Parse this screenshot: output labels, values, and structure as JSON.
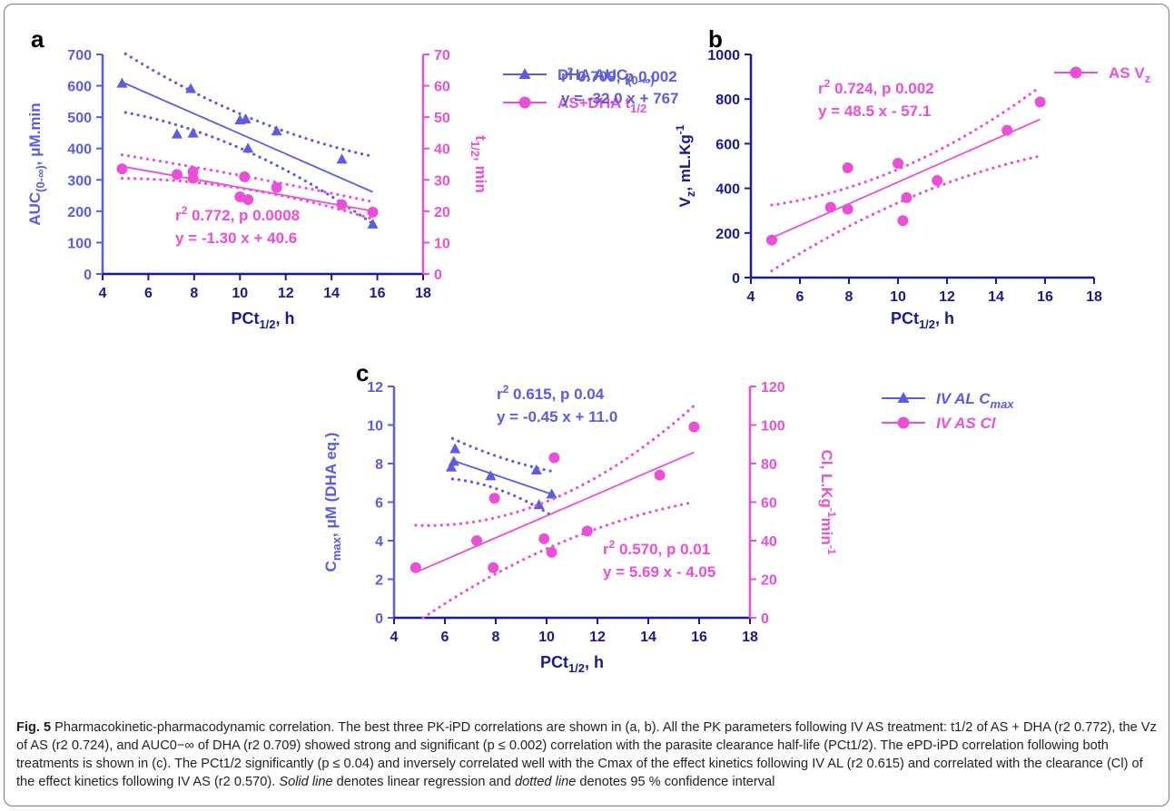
{
  "colors": {
    "blue": "#5b5be6",
    "pink": "#ea4fd6",
    "navy": "#1a1a96",
    "black": "#000000"
  },
  "panels": {
    "a": {
      "label": "a",
      "xlabel_main": "PCt",
      "xlabel_sub": "1/2",
      "xlabel_end": ", h",
      "ylabel_left": "AUC",
      "ylabel_left_sub": "(0-∞)",
      "ylabel_left_end": ", μM.min",
      "ylabel_right": "t",
      "ylabel_right_sub": "1/2",
      "ylabel_right_end": ", min",
      "legend": [
        {
          "text": "DHA AUC",
          "sub": "(0-∞)",
          "marker": "triangle",
          "color": "blue"
        },
        {
          "text": "AS+DHA t",
          "sub": "1/2",
          "marker": "circle",
          "color": "pink"
        }
      ],
      "annotations": [
        {
          "pre": "r",
          "sup": "2",
          "text": " 0.709, p 0.002",
          "color": "blue"
        },
        {
          "pre": "",
          "sup": "",
          "text": "y = -32.0 x + 767",
          "color": "blue"
        },
        {
          "pre": "r",
          "sup": "2",
          "text": " 0.772, p 0.0008",
          "color": "pink"
        },
        {
          "pre": "",
          "sup": "",
          "text": "y = -1.30 x + 40.6",
          "color": "pink"
        }
      ]
    },
    "b": {
      "label": "b",
      "xlabel_main": "PCt",
      "xlabel_sub": "1/2",
      "xlabel_end": ", h",
      "ylabel_left": "V",
      "ylabel_left_sub": "z",
      "ylabel_left_end": ", mL.Kg",
      "ylabel_left_sup": "-1",
      "legend": [
        {
          "text": "AS V",
          "sub": "z",
          "marker": "circle",
          "color": "pink"
        }
      ],
      "annotations": [
        {
          "pre": "r",
          "sup": "2",
          "text": " 0.724, p 0.002",
          "color": "pink"
        },
        {
          "pre": "",
          "sup": "",
          "text": "y = 48.5 x - 57.1",
          "color": "pink"
        }
      ]
    },
    "c": {
      "label": "c",
      "xlabel_main": "PCt",
      "xlabel_sub": "1/2",
      "xlabel_end": ", h",
      "ylabel_left": "C",
      "ylabel_left_sub": "max",
      "ylabel_left_end": ", μM (DHA eq.)",
      "ylabel_right": "Cl, L.Kg",
      "ylabel_right_sup": "-1",
      "ylabel_right_end": "min",
      "ylabel_right_sup2": "-1",
      "legend": [
        {
          "text": "IV AL C",
          "sub": "max",
          "marker": "triangle",
          "color": "blue"
        },
        {
          "text": "IV AS Cl",
          "sub": "",
          "marker": "circle",
          "color": "pink"
        }
      ],
      "annotations": [
        {
          "pre": "r",
          "sup": "2",
          "text": " 0.615, p 0.04",
          "color": "blue"
        },
        {
          "pre": "",
          "sup": "",
          "text": "y = -0.45 x + 11.0",
          "color": "blue"
        },
        {
          "pre": "r",
          "sup": "2",
          "text": " 0.570, p 0.01",
          "color": "pink"
        },
        {
          "pre": "",
          "sup": "",
          "text": "y = 5.69 x - 4.05",
          "color": "pink"
        }
      ]
    }
  },
  "chart_data": [
    {
      "panel": "a",
      "type": "scatter",
      "xlim": [
        4,
        18
      ],
      "xticks": [
        4,
        6,
        8,
        10,
        12,
        14,
        16,
        18
      ],
      "ylim_left": [
        0,
        700
      ],
      "yticks_left": [
        0,
        100,
        200,
        300,
        400,
        500,
        600,
        700
      ],
      "ylim_right": [
        0,
        70
      ],
      "yticks_right": [
        0,
        10,
        20,
        30,
        40,
        50,
        60,
        70
      ],
      "series": [
        {
          "name": "DHA AUC(0-∞)",
          "axis": "left",
          "marker": "triangle",
          "color": "blue",
          "x": [
            4.85,
            7.25,
            7.85,
            7.95,
            10.0,
            10.25,
            10.35,
            11.6,
            14.45,
            15.8
          ],
          "y": [
            607,
            445,
            590,
            448,
            490,
            493,
            400,
            455,
            365,
            158
          ],
          "fit": {
            "slope": -32.0,
            "intercept": 767,
            "x_range": [
              4.85,
              15.8
            ]
          },
          "ci_upper": [
            [
              5.0,
              702
            ],
            [
              10.3,
              500
            ],
            [
              15.8,
              375
            ]
          ],
          "ci_lower": [
            [
              5.0,
              515
            ],
            [
              10.3,
              390
            ],
            [
              15.8,
              160
            ]
          ]
        },
        {
          "name": "AS+DHA t1/2",
          "axis": "right",
          "marker": "circle",
          "color": "pink",
          "x": [
            4.85,
            7.25,
            7.95,
            7.95,
            10.0,
            10.2,
            10.35,
            11.6,
            14.45,
            15.8
          ],
          "y": [
            33.5,
            31.7,
            30.5,
            32.6,
            24.6,
            31.0,
            23.7,
            27.6,
            22.1,
            19.7
          ],
          "fit": {
            "slope": -1.3,
            "intercept": 40.6,
            "x_range": [
              4.85,
              15.8
            ]
          },
          "ci_upper": [
            [
              4.85,
              38.0
            ],
            [
              10.3,
              31.0
            ],
            [
              15.8,
              23.0
            ]
          ],
          "ci_lower": [
            [
              4.85,
              30.5
            ],
            [
              10.3,
              27.0
            ],
            [
              15.8,
              17.5
            ]
          ]
        }
      ]
    },
    {
      "panel": "b",
      "type": "scatter",
      "xlim": [
        4,
        18
      ],
      "xticks": [
        4,
        6,
        8,
        10,
        12,
        14,
        16,
        18
      ],
      "ylim_left": [
        0,
        1000
      ],
      "yticks_left": [
        0,
        200,
        400,
        600,
        800,
        1000
      ],
      "series": [
        {
          "name": "AS Vz",
          "axis": "left",
          "marker": "circle",
          "color": "pink",
          "x": [
            4.85,
            7.25,
            7.95,
            7.95,
            10.0,
            10.2,
            10.35,
            11.6,
            14.45,
            15.8
          ],
          "y": [
            168,
            315,
            492,
            307,
            512,
            255,
            358,
            435,
            660,
            787
          ],
          "fit": {
            "slope": 48.5,
            "intercept": -57.1,
            "x_range": [
              4.85,
              15.8
            ]
          },
          "ci_upper": [
            [
              4.85,
              325
            ],
            [
              10.3,
              500
            ],
            [
              15.8,
              855
            ]
          ],
          "ci_lower": [
            [
              4.85,
              30
            ],
            [
              10.3,
              350
            ],
            [
              15.8,
              545
            ]
          ]
        }
      ]
    },
    {
      "panel": "c",
      "type": "scatter",
      "xlim": [
        4,
        18
      ],
      "xticks": [
        4,
        6,
        8,
        10,
        12,
        14,
        16,
        18
      ],
      "ylim_left": [
        0,
        12
      ],
      "yticks_left": [
        0,
        2,
        4,
        6,
        8,
        10,
        12
      ],
      "ylim_right": [
        0,
        120
      ],
      "yticks_right": [
        0,
        20,
        40,
        60,
        80,
        100,
        120
      ],
      "series": [
        {
          "name": "IV AL Cmax",
          "axis": "left",
          "marker": "triangle",
          "color": "blue",
          "x": [
            6.25,
            6.35,
            6.4,
            7.8,
            9.6,
            9.7,
            10.2
          ],
          "y": [
            7.8,
            8.1,
            8.75,
            7.35,
            7.65,
            5.85,
            6.4
          ],
          "fit": {
            "slope": -0.45,
            "intercept": 11.0,
            "x_range": [
              6.3,
              10.2
            ]
          },
          "ci_upper": [
            [
              6.3,
              9.3
            ],
            [
              8.2,
              8.3
            ],
            [
              10.2,
              7.6
            ]
          ],
          "ci_lower": [
            [
              6.3,
              7.2
            ],
            [
              8.2,
              6.6
            ],
            [
              10.2,
              5.3
            ]
          ]
        },
        {
          "name": "IV AS Cl",
          "axis": "right",
          "marker": "circle",
          "color": "pink",
          "x": [
            4.85,
            7.25,
            7.9,
            7.95,
            9.9,
            10.2,
            10.3,
            11.6,
            14.45,
            15.8
          ],
          "y": [
            26,
            40,
            26,
            62,
            41,
            34,
            83,
            45,
            74,
            99
          ],
          "fit": {
            "slope": 5.69,
            "intercept": -4.05,
            "x_range": [
              4.85,
              15.8
            ]
          },
          "ci_upper": [
            [
              4.85,
              48
            ],
            [
              10.3,
              62
            ],
            [
              15.8,
              110
            ]
          ],
          "ci_lower": [
            [
              5.15,
              0
            ],
            [
              10.3,
              38
            ],
            [
              15.8,
              60
            ]
          ]
        }
      ]
    }
  ],
  "caption": {
    "fig_label": "Fig. 5",
    "title": "Pharmacokinetic-pharmacodynamic correlation.",
    "body": "The best three PK-iPD correlations are shown in (a, b). All the PK parameters following IV AS treatment: t1/2 of AS + DHA (r2 0.772), the Vz of AS (r2 0.724), and AUC0−∞ of DHA (r2 0.709) showed strong and significant (p ≤ 0.002) correlation with the parasite clearance half-life (PCt1/2). The ePD-iPD correlation following both treatments is shown in (c). The PCt1/2 significantly (p ≤ 0.04) and inversely correlated well with the Cmax of the effect kinetics following IV AL (r2 0.615) and correlated with the clearance (Cl) of the effect kinetics following IV AS (r2 0.570).",
    "solid_term": "Solid line",
    "solid_rest": " denotes linear regression and ",
    "dotted_term": "dotted line",
    "dotted_rest": " denotes 95 % confidence interval"
  }
}
